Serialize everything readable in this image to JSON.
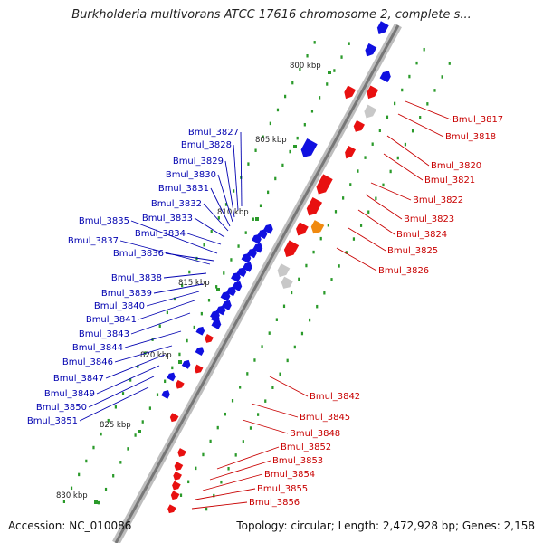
{
  "title": "Burkholderia multivorans ATCC 17616 chromosome 2, complete s...",
  "footer": {
    "accession": "Accession: NC_010086",
    "topology": "Topology: circular; Length: 2,472,928 bp; Genes: 2,158"
  },
  "kbp_ticks": [
    "800 kbp",
    "805 kbp",
    "810 kbp",
    "815 kbp",
    "820 kbp",
    "825 kbp",
    "830 kbp"
  ],
  "genes_left": [
    "Bmul_3827",
    "Bmul_3828",
    "Bmul_3829",
    "Bmul_3830",
    "Bmul_3831",
    "Bmul_3832",
    "Bmul_3833",
    "Bmul_3834",
    "Bmul_3835",
    "Bmul_3836",
    "Bmul_3837",
    "Bmul_3838",
    "Bmul_3839",
    "Bmul_3840",
    "Bmul_3841",
    "Bmul_3843",
    "Bmul_3844",
    "Bmul_3846",
    "Bmul_3847",
    "Bmul_3849",
    "Bmul_3850",
    "Bmul_3851"
  ],
  "genes_right": [
    "Bmul_3817",
    "Bmul_3818",
    "Bmul_3820",
    "Bmul_3821",
    "Bmul_3822",
    "Bmul_3823",
    "Bmul_3824",
    "Bmul_3825",
    "Bmul_3826",
    "Bmul_3842",
    "Bmul_3845",
    "Bmul_3848",
    "Bmul_3852",
    "Bmul_3853",
    "Bmul_3854",
    "Bmul_3855",
    "Bmul_3856"
  ],
  "colors": {
    "backbone": "#8a8a8a",
    "forward_gene": "#e81010",
    "reverse_gene": "#1010e0",
    "other_gene": "#c8c8c8",
    "highlight_gene": "#f08a10",
    "label_left": "#0000b0",
    "label_right": "#c80000",
    "tick_dots": "#2a9a2a"
  }
}
